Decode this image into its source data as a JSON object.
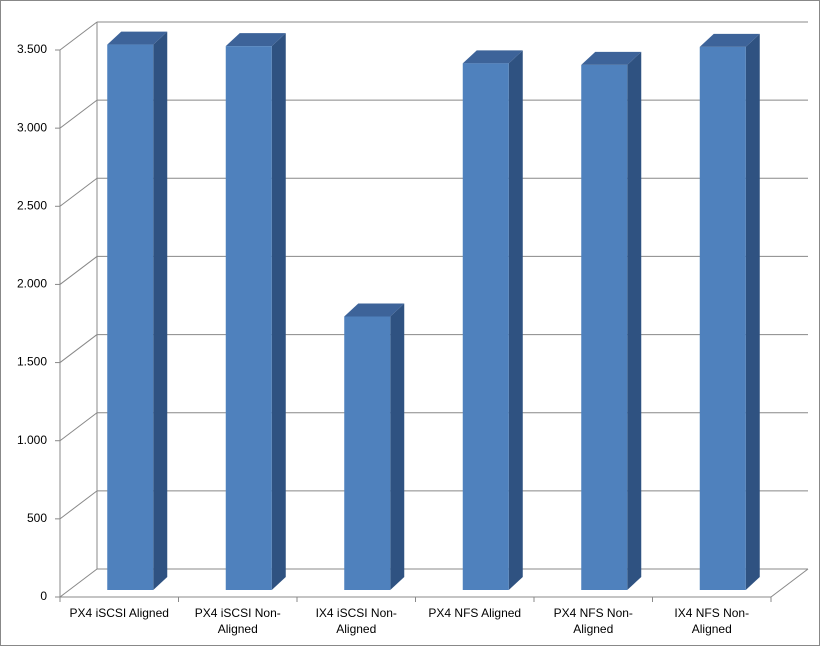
{
  "chart_data": {
    "type": "bar3d",
    "categories": [
      "PX4 iSCSI Aligned",
      "PX4 iSCSI Non-Aligned",
      "IX4 iSCSI Non-Aligned",
      "PX4 NFS Aligned",
      "PX4 NFS Non-Aligned",
      "IX4 NFS Non-Aligned"
    ],
    "values": [
      3490,
      3480,
      1750,
      3370,
      3360,
      3475
    ],
    "color": "#4f81bd",
    "ylim": [
      0,
      3500
    ],
    "yticks": [
      0,
      500,
      {
        "value": 1000,
        "label": "1.000"
      },
      {
        "value": 1500,
        "label": "1.500"
      },
      {
        "value": 2000,
        "label": "2.000"
      },
      {
        "value": 2500,
        "label": "2.500"
      },
      {
        "value": 3000,
        "label": "3.000"
      },
      {
        "value": 3500,
        "label": "3.500"
      }
    ],
    "grid": true
  }
}
